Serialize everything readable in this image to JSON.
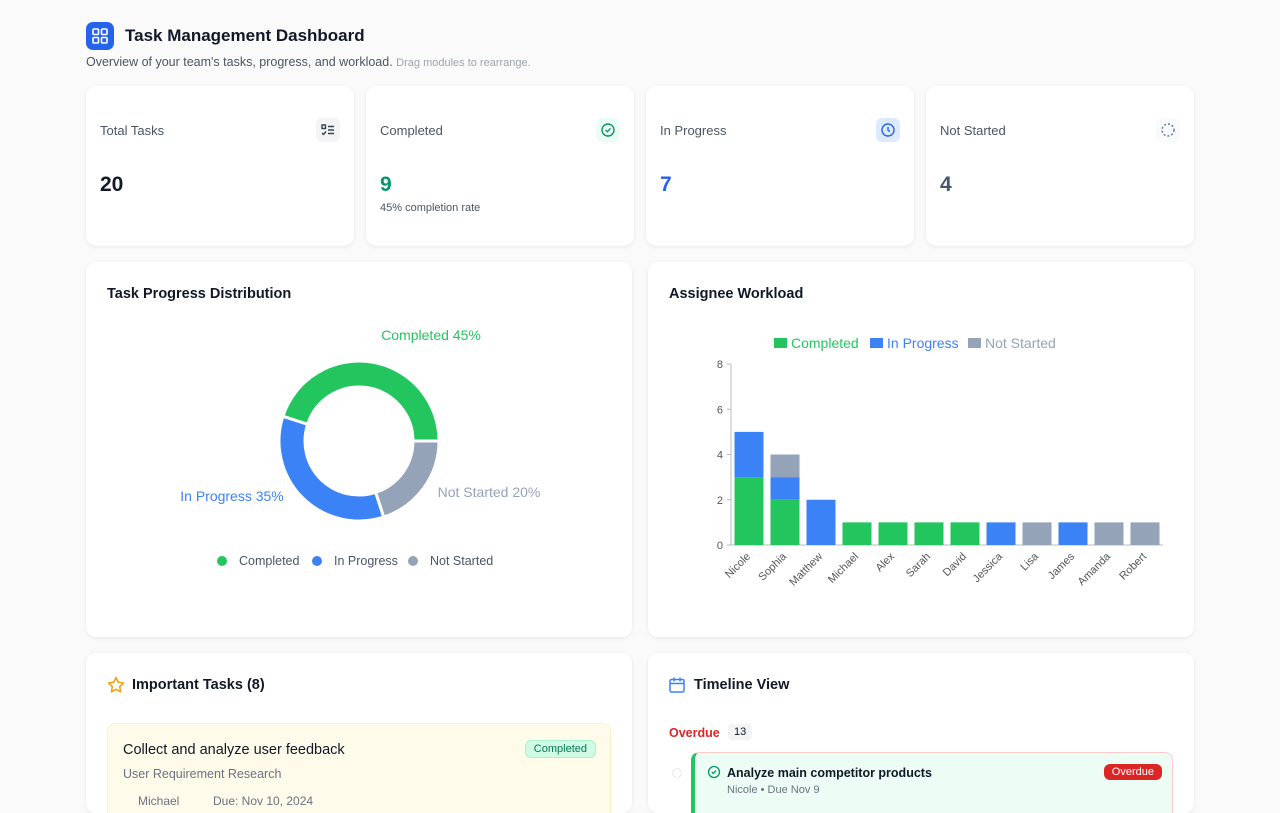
{
  "header": {
    "title": "Task Management Dashboard",
    "subtitle": "Overview of your team's tasks, progress, and workload.",
    "hint": "Drag modules to rearrange."
  },
  "stats": [
    {
      "label": "Total Tasks",
      "value": 20
    },
    {
      "label": "Completed",
      "value": 9,
      "note": "45% completion rate"
    },
    {
      "label": "In Progress",
      "value": 7
    },
    {
      "label": "Not Started",
      "value": 4
    }
  ],
  "chart_data": [
    {
      "type": "pie",
      "title": "Task Progress Distribution",
      "categories": [
        "Completed",
        "In Progress",
        "Not Started"
      ],
      "values": [
        45,
        35,
        20
      ],
      "value_labels": [
        "Completed 45%",
        "In Progress 35%",
        "Not Started 20%"
      ],
      "colors": [
        "#22c55e",
        "#3b82f6",
        "#94a3b8"
      ],
      "legend": "bottom"
    },
    {
      "type": "bar",
      "stacked": true,
      "title": "Assignee Workload",
      "categories": [
        "Nicole",
        "Sophia",
        "Matthew",
        "Michael",
        "Alex",
        "Sarah",
        "David",
        "Jessica",
        "Lisa",
        "James",
        "Amanda",
        "Robert"
      ],
      "series": [
        {
          "name": "Completed",
          "color": "#22c55e",
          "values": [
            3,
            2,
            0,
            1,
            1,
            1,
            1,
            0,
            0,
            0,
            0,
            0
          ]
        },
        {
          "name": "In Progress",
          "color": "#3b82f6",
          "values": [
            2,
            1,
            2,
            0,
            0,
            0,
            0,
            1,
            0,
            1,
            0,
            0
          ]
        },
        {
          "name": "Not Started",
          "color": "#94a3b8",
          "values": [
            0,
            1,
            0,
            0,
            0,
            0,
            0,
            0,
            1,
            0,
            1,
            1
          ]
        }
      ],
      "ylim": [
        0,
        8
      ],
      "yticks": [
        0,
        2,
        4,
        6,
        8
      ],
      "legend": "top"
    }
  ],
  "important_tasks": {
    "title": "Important Tasks (8)",
    "items": [
      {
        "title": "Collect and analyze user feedback",
        "status": "Completed",
        "project": "User Requirement Research",
        "assignee": "Michael",
        "due": "Due: Nov 10, 2024"
      }
    ]
  },
  "timeline": {
    "title": "Timeline View",
    "group": "Overdue",
    "count": 13,
    "items": [
      {
        "title": "Analyze main competitor products",
        "meta": "Nicole • Due Nov 9",
        "status": "Overdue"
      }
    ]
  }
}
